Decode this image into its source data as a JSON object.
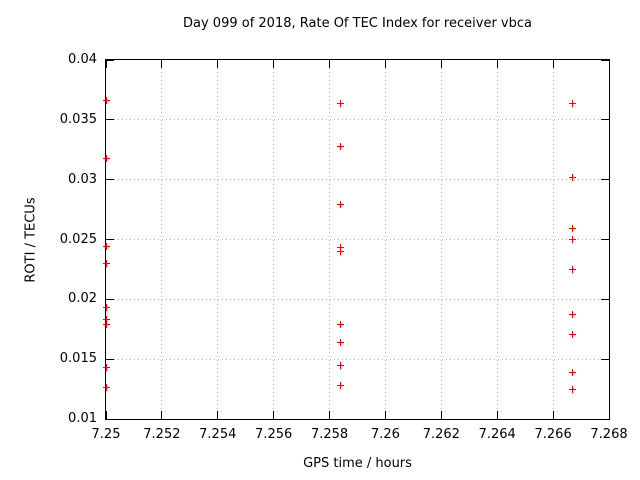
{
  "colors": {
    "marker": "#ff0000",
    "grid": "#b0b0b0",
    "border": "#000000",
    "background": "#ffffff",
    "text": "#000000"
  },
  "chart_data": {
    "type": "scatter",
    "title": "Day 099 of 2018, Rate Of TEC Index for receiver vbca",
    "xlabel": "GPS time / hours",
    "ylabel": "ROTI / TECUs",
    "xlim": [
      7.25,
      7.268
    ],
    "ylim": [
      0.01,
      0.04
    ],
    "xtick_labels": [
      "7.25",
      "7.252",
      "7.254",
      "7.256",
      "7.258",
      "7.26",
      "7.262",
      "7.264",
      "7.266",
      "7.268"
    ],
    "ytick_labels": [
      "0.01",
      "0.015",
      "0.02",
      "0.025",
      "0.03",
      "0.035",
      "0.04"
    ],
    "grid": true,
    "legend": false,
    "marker": "plus",
    "marker_color": "#ff0000",
    "series": [
      {
        "name": "roti",
        "points": [
          [
            7.25,
            0.0366
          ],
          [
            7.25,
            0.0318
          ],
          [
            7.25,
            0.0244
          ],
          [
            7.25,
            0.023
          ],
          [
            7.25,
            0.0193
          ],
          [
            7.25,
            0.0183
          ],
          [
            7.25,
            0.0179
          ],
          [
            7.25,
            0.0143
          ],
          [
            7.25,
            0.0126
          ],
          [
            7.2584,
            0.0364
          ],
          [
            7.2584,
            0.0328
          ],
          [
            7.2584,
            0.0279
          ],
          [
            7.2584,
            0.0243
          ],
          [
            7.2584,
            0.024
          ],
          [
            7.2584,
            0.0179
          ],
          [
            7.2584,
            0.0164
          ],
          [
            7.2584,
            0.0145
          ],
          [
            7.2584,
            0.0128
          ],
          [
            7.2667,
            0.0364
          ],
          [
            7.2667,
            0.0302
          ],
          [
            7.2667,
            0.0259
          ],
          [
            7.2667,
            0.025
          ],
          [
            7.2667,
            0.0225
          ],
          [
            7.2667,
            0.0187
          ],
          [
            7.2667,
            0.0171
          ],
          [
            7.2667,
            0.0139
          ],
          [
            7.2667,
            0.0125
          ]
        ]
      }
    ]
  }
}
